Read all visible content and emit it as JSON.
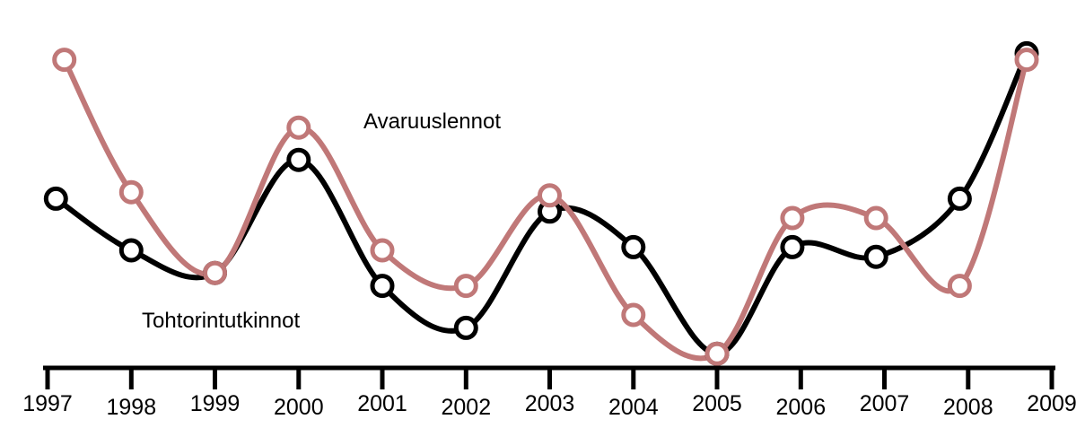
{
  "chart_data": {
    "type": "line",
    "title": "",
    "xlabel": "",
    "ylabel": "",
    "x_ticks": [
      "1997",
      "1998",
      "1999",
      "2000",
      "2001",
      "2002",
      "2003",
      "2004",
      "2005",
      "2006",
      "2007",
      "2008",
      "2009"
    ],
    "ylim": [
      0,
      100
    ],
    "grid": false,
    "series": [
      {
        "name": "Tohtorintutkinnot",
        "color": "#000000",
        "x": [
          1997.1,
          1998.0,
          1999.0,
          2000.0,
          2001.0,
          2002.0,
          2003.0,
          2004.0,
          2005.0,
          2005.9,
          2006.9,
          2007.9,
          2008.7
        ],
        "y": [
          51,
          35,
          28,
          63,
          24,
          11,
          47,
          36,
          3,
          36,
          33,
          51,
          96
        ]
      },
      {
        "name": "Avaruuslennot",
        "color": "#c07878",
        "x": [
          1997.2,
          1998.0,
          1999.0,
          2000.0,
          2001.0,
          2002.0,
          2003.0,
          2004.0,
          2005.0,
          2005.9,
          2006.9,
          2007.9,
          2008.7
        ],
        "y": [
          94,
          53,
          28,
          73,
          35,
          24,
          52,
          15,
          3,
          45,
          45,
          24,
          94
        ]
      }
    ]
  }
}
